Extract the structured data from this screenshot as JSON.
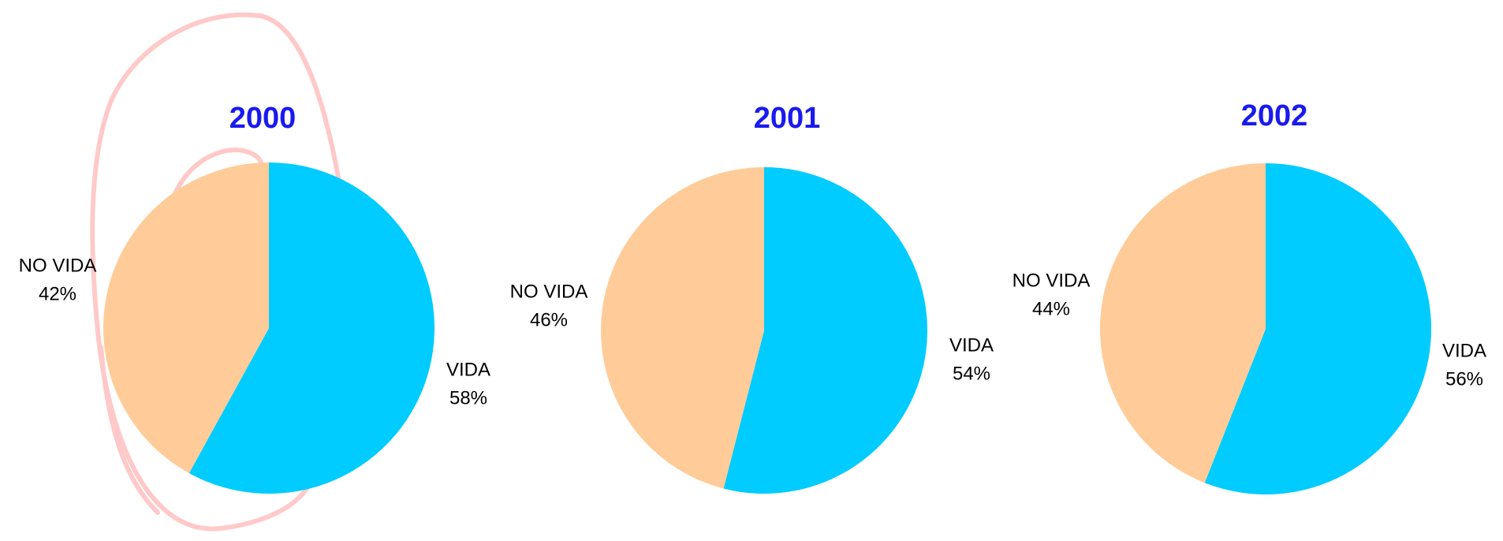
{
  "chart_data": [
    {
      "type": "pie",
      "title": "2000",
      "categories": [
        "VIDA",
        "NO VIDA"
      ],
      "values": [
        58,
        42
      ],
      "value_labels": [
        "58%",
        "42%"
      ],
      "colors": [
        "#00ccff",
        "#ffcc99"
      ]
    },
    {
      "type": "pie",
      "title": "2001",
      "categories": [
        "VIDA",
        "NO VIDA"
      ],
      "values": [
        54,
        46
      ],
      "value_labels": [
        "54%",
        "46%"
      ],
      "colors": [
        "#00ccff",
        "#ffcc99"
      ]
    },
    {
      "type": "pie",
      "title": "2002",
      "categories": [
        "VIDA",
        "NO VIDA"
      ],
      "values": [
        56,
        44
      ],
      "value_labels": [
        "56%",
        "44%"
      ],
      "colors": [
        "#00ccff",
        "#ffcc99"
      ]
    }
  ]
}
